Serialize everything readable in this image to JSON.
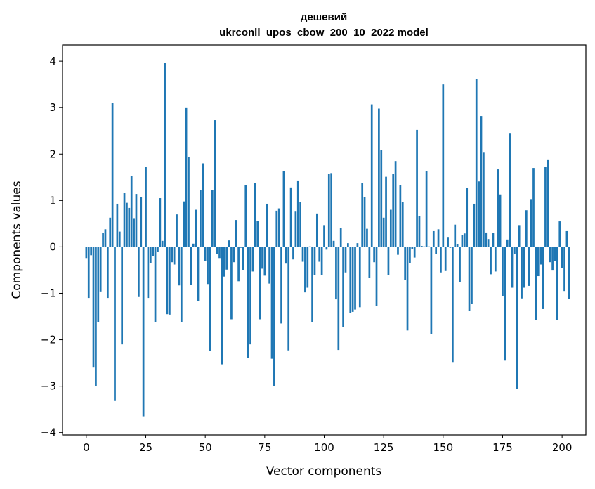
{
  "chart_data": {
    "type": "bar",
    "title_line1": "дешевий",
    "title_line2": "ukrconll_upos_cbow_200_10_2022 model",
    "xlabel": "Vector components",
    "ylabel": "Components values",
    "xlim": [
      -10,
      210
    ],
    "ylim": [
      -4.05,
      4.35
    ],
    "xticks": [
      0,
      25,
      50,
      75,
      100,
      125,
      150,
      175,
      200
    ],
    "yticks": [
      -4,
      -3,
      -2,
      -1,
      0,
      1,
      2,
      3,
      4
    ],
    "grid": false,
    "bar_color": "#1f77b4",
    "values": [
      -0.24,
      -1.1,
      -0.18,
      -2.6,
      -3.0,
      -1.62,
      -0.96,
      0.3,
      0.38,
      -1.1,
      0.63,
      3.1,
      -3.32,
      0.93,
      0.33,
      -2.1,
      1.16,
      0.95,
      0.84,
      1.52,
      0.62,
      1.14,
      -1.08,
      1.08,
      -3.65,
      1.73,
      -1.1,
      -0.35,
      -0.2,
      -1.62,
      -0.1,
      1.05,
      0.13,
      3.97,
      -1.45,
      -1.46,
      -0.33,
      -0.38,
      0.7,
      -0.83,
      -1.62,
      0.98,
      2.99,
      1.93,
      -0.82,
      0.07,
      0.8,
      -1.17,
      1.22,
      1.8,
      -0.3,
      -0.8,
      -2.24,
      1.22,
      2.73,
      -0.15,
      -0.24,
      -2.53,
      -0.64,
      -0.49,
      0.14,
      -1.56,
      -0.33,
      0.58,
      -0.74,
      -0.02,
      -0.5,
      1.33,
      -2.39,
      -2.1,
      -0.53,
      1.38,
      0.56,
      -1.56,
      -0.47,
      -0.62,
      0.93,
      -0.79,
      -2.41,
      -3.0,
      0.78,
      0.83,
      -1.65,
      1.64,
      -0.36,
      -2.23,
      1.28,
      -0.27,
      0.76,
      1.43,
      0.97,
      -0.32,
      -0.98,
      -0.88,
      0.01,
      -1.62,
      -0.6,
      0.72,
      -0.32,
      -0.6,
      0.47,
      -0.06,
      1.57,
      1.59,
      0.13,
      -1.13,
      -2.22,
      0.4,
      -1.73,
      -0.55,
      0.08,
      -1.42,
      -1.4,
      -1.35,
      0.08,
      -1.3,
      1.37,
      1.08,
      0.39,
      -0.67,
      3.07,
      -0.33,
      -1.28,
      2.98,
      2.08,
      0.63,
      1.51,
      -0.6,
      0.8,
      1.58,
      1.85,
      -0.17,
      1.33,
      0.97,
      -0.72,
      -1.8,
      -0.35,
      -0.04,
      -0.23,
      2.52,
      0.66,
      0.02,
      0.01,
      1.64,
      0.01,
      -1.88,
      0.34,
      -0.15,
      0.38,
      -0.55,
      3.5,
      -0.52,
      0.2,
      -0.02,
      -2.48,
      0.48,
      0.06,
      -0.76,
      0.25,
      0.29,
      1.27,
      -1.38,
      -1.23,
      0.93,
      3.62,
      1.41,
      2.82,
      2.03,
      0.31,
      0.17,
      -0.59,
      0.3,
      -0.53,
      1.67,
      1.13,
      -1.06,
      -2.45,
      0.16,
      2.44,
      -0.88,
      -0.16,
      -3.06,
      0.47,
      -1.11,
      -0.88,
      0.79,
      -0.84,
      1.03,
      1.7,
      -1.57,
      -0.63,
      -0.38,
      -1.34,
      1.73,
      1.87,
      -0.33,
      -0.51,
      -0.3,
      -1.57,
      0.55,
      -0.45,
      -0.95,
      0.34,
      -1.12
    ]
  }
}
